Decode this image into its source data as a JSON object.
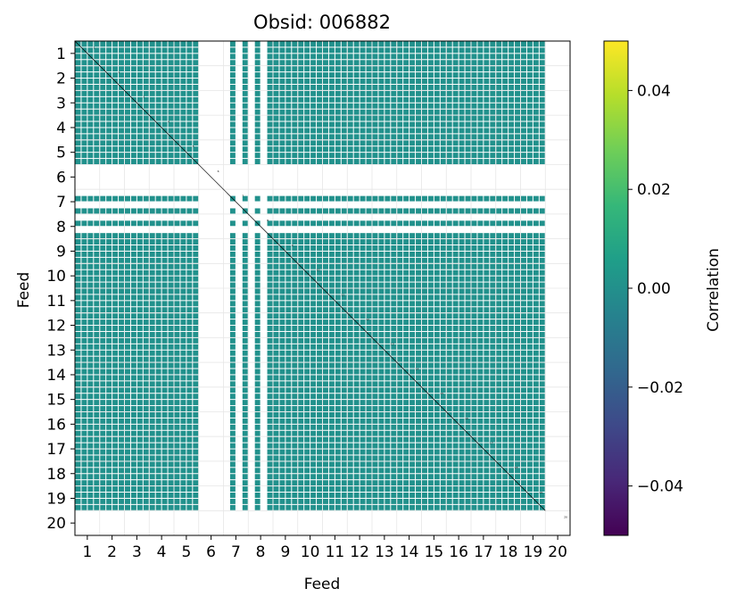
{
  "chart_data": {
    "type": "heatmap",
    "title": "Obsid: 006882",
    "xlabel": "Feed",
    "ylabel": "Feed",
    "x_tick_labels": [
      "1",
      "2",
      "3",
      "4",
      "5",
      "6",
      "7",
      "8",
      "9",
      "10",
      "11",
      "12",
      "13",
      "14",
      "15",
      "16",
      "17",
      "18",
      "19",
      "20"
    ],
    "y_tick_labels": [
      "1",
      "2",
      "3",
      "4",
      "5",
      "6",
      "7",
      "8",
      "9",
      "10",
      "11",
      "12",
      "13",
      "14",
      "15",
      "16",
      "17",
      "18",
      "19",
      "20"
    ],
    "n_feeds": 20,
    "sub_blocks_per_feed": 4,
    "value_scale": "near zero (~0.00) for all valid pairs",
    "cell_value": 0.0,
    "colormap": "viridis",
    "cell_color": "#21918c",
    "flagged_feeds": [
      "6",
      "20"
    ],
    "partially_flagged_feeds": [
      "7",
      "8"
    ],
    "diagonal_line_color": "#000000",
    "colorbar": {
      "label": "Correlation",
      "vmin": -0.05,
      "vmax": 0.05,
      "ticks": [
        0.04,
        0.02,
        0.0,
        -0.02,
        -0.04
      ],
      "tick_labels": [
        "0.04",
        "0.02",
        "0.00",
        "−0.02",
        "−0.04"
      ],
      "colors": [
        "#440154",
        "#482878",
        "#3e4989",
        "#31688e",
        "#26828e",
        "#1f9e89",
        "#35b779",
        "#6ece58",
        "#b5de2b",
        "#fde725"
      ]
    },
    "grid": true,
    "diagonal_labels": [
      "1",
      "2",
      "3",
      "4",
      "5",
      "6",
      "7",
      "8",
      "9",
      "10",
      "11",
      "12",
      "13",
      "14",
      "15",
      "16",
      "17",
      "18",
      "19",
      "20"
    ]
  }
}
